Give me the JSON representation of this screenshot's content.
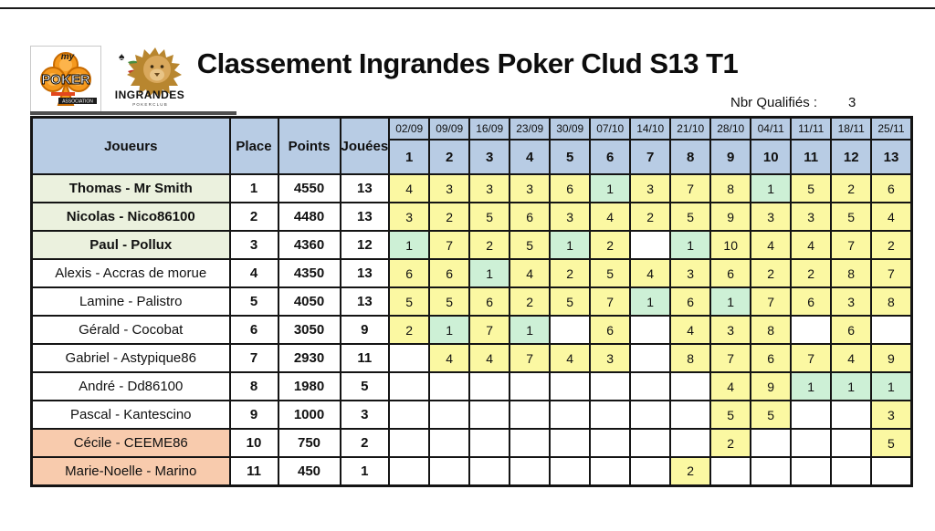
{
  "page": {
    "title": "Classement Ingrandes Poker Clud S13 T1"
  },
  "qualifiers": {
    "label": "Nbr Qualifiés :",
    "value": "3"
  },
  "logos": {
    "association": {
      "top_script": "my",
      "main": "POKER",
      "banner": "ASSOCIATION"
    },
    "ingrandes": {
      "name": "INGRANDES",
      "subtitle": "P O K E R   C L U B",
      "suits": [
        {
          "char": "♥",
          "color": "#c0392b"
        },
        {
          "char": "♠",
          "color": "#a93226"
        },
        {
          "char": "♦",
          "color": "#c0392b"
        },
        {
          "char": "♣",
          "color": "#1c1c1c"
        }
      ]
    }
  },
  "colors": {
    "header_blue": "#b8cce4",
    "top3_green": "#ebf1de",
    "relegation_orange": "#f8cbad",
    "score_yellow": "#fbf8a2",
    "score_first_green": "#cdf0d6",
    "grid_border": "#141414"
  },
  "table": {
    "headers": {
      "players": "Joueurs",
      "place": "Place",
      "points": "Points",
      "played": "Jouées"
    },
    "dates": [
      "02/09",
      "09/09",
      "16/09",
      "23/09",
      "30/09",
      "07/10",
      "14/10",
      "21/10",
      "28/10",
      "04/11",
      "11/11",
      "18/11",
      "25/11"
    ],
    "rounds": [
      "1",
      "2",
      "3",
      "4",
      "5",
      "6",
      "7",
      "8",
      "9",
      "10",
      "11",
      "12",
      "13"
    ],
    "players": [
      {
        "name": "Thomas - Mr Smith",
        "place": "1",
        "points": "4550",
        "played": "13",
        "highlight": "top3",
        "scores": [
          "4",
          "3",
          "3",
          "3",
          "6",
          "1",
          "3",
          "7",
          "8",
          "1",
          "5",
          "2",
          "6"
        ]
      },
      {
        "name": "Nicolas - Nico86100",
        "place": "2",
        "points": "4480",
        "played": "13",
        "highlight": "top3",
        "scores": [
          "3",
          "2",
          "5",
          "6",
          "3",
          "4",
          "2",
          "5",
          "9",
          "3",
          "3",
          "5",
          "4"
        ]
      },
      {
        "name": "Paul - Pollux",
        "place": "3",
        "points": "4360",
        "played": "12",
        "highlight": "top3",
        "scores": [
          "1",
          "7",
          "2",
          "5",
          "1",
          "2",
          "",
          "1",
          "10",
          "4",
          "4",
          "7",
          "2"
        ]
      },
      {
        "name": "Alexis - Accras de morue",
        "place": "4",
        "points": "4350",
        "played": "13",
        "highlight": "none",
        "scores": [
          "6",
          "6",
          "1",
          "4",
          "2",
          "5",
          "4",
          "3",
          "6",
          "2",
          "2",
          "8",
          "7"
        ]
      },
      {
        "name": "Lamine - Palistro",
        "place": "5",
        "points": "4050",
        "played": "13",
        "highlight": "none",
        "scores": [
          "5",
          "5",
          "6",
          "2",
          "5",
          "7",
          "1",
          "6",
          "1",
          "7",
          "6",
          "3",
          "8"
        ]
      },
      {
        "name": "Gérald - Cocobat",
        "place": "6",
        "points": "3050",
        "played": "9",
        "highlight": "none",
        "scores": [
          "2",
          "1",
          "7",
          "1",
          "",
          "6",
          "",
          "4",
          "3",
          "8",
          "",
          "6",
          ""
        ]
      },
      {
        "name": "Gabriel - Astypique86",
        "place": "7",
        "points": "2930",
        "played": "11",
        "highlight": "none",
        "scores": [
          "",
          "4",
          "4",
          "7",
          "4",
          "3",
          "",
          "8",
          "7",
          "6",
          "7",
          "4",
          "9"
        ]
      },
      {
        "name": "André - Dd86100",
        "place": "8",
        "points": "1980",
        "played": "5",
        "highlight": "none",
        "scores": [
          "",
          "",
          "",
          "",
          "",
          "",
          "",
          "",
          "4",
          "9",
          "1",
          "1",
          "1"
        ]
      },
      {
        "name": "Pascal - Kantescino",
        "place": "9",
        "points": "1000",
        "played": "3",
        "highlight": "none",
        "scores": [
          "",
          "",
          "",
          "",
          "",
          "",
          "",
          "",
          "5",
          "5",
          "",
          "",
          "3"
        ]
      },
      {
        "name": "Cécile - CEEME86",
        "place": "10",
        "points": "750",
        "played": "2",
        "highlight": "releg",
        "scores": [
          "",
          "",
          "",
          "",
          "",
          "",
          "",
          "",
          "2",
          "",
          "",
          "",
          "5"
        ]
      },
      {
        "name": "Marie-Noelle - Marino",
        "place": "11",
        "points": "450",
        "played": "1",
        "highlight": "releg",
        "scores": [
          "",
          "",
          "",
          "",
          "",
          "",
          "",
          "2",
          "",
          "",
          "",
          "",
          ""
        ]
      }
    ]
  }
}
